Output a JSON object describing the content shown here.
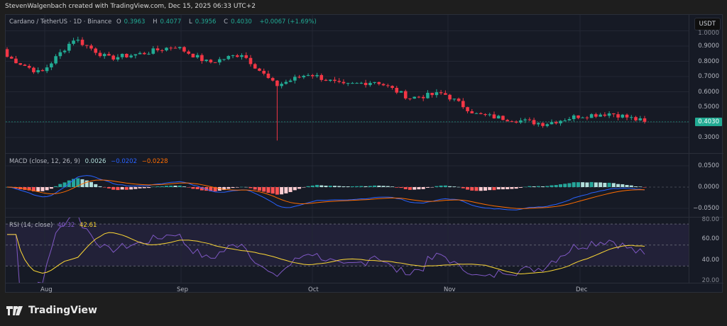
{
  "credit": "StevenWalgenbach created with TradingView.com, Dec 15, 2025 06:33 UTC+2",
  "symbol": {
    "title": "Cardano / TetherUS · 1D · Binance",
    "open_label": "O",
    "open": "0.3963",
    "high_label": "H",
    "high": "0.4077",
    "low_label": "L",
    "low": "0.3956",
    "close_label": "C",
    "close": "0.4030",
    "change": "+0.0067 (+1.69%)"
  },
  "currency_button": "USDT",
  "last_price_tag": "0.4030",
  "macd_legend": {
    "title": "MACD (close, 12, 26, 9)",
    "histogram": "0.0026",
    "macd": "−0.0202",
    "signal": "−0.0228"
  },
  "rsi_legend": {
    "title": "RSI (14, close)",
    "rsi": "40.32",
    "ma": "42.61"
  },
  "brand": "TradingView",
  "colors": {
    "up": "#22ab94",
    "down": "#f23645",
    "macd": "#2962ff",
    "signal": "#ff6d00",
    "rsi": "#7e57c2",
    "rsi_ma": "#fdd835",
    "background": "#161a25"
  },
  "chart_data": [
    {
      "type": "candlestick",
      "title": "Cardano / TetherUS · 1D · Binance",
      "ylabel": "USDT",
      "x_ticks": [
        "Aug",
        "Sep",
        "Oct",
        "Nov",
        "Dec"
      ],
      "y_ticks": [
        "1.0000",
        "0.9000",
        "0.8000",
        "0.7000",
        "0.6000",
        "0.5000",
        "0.4000",
        "0.3000"
      ],
      "ylim": [
        0.26,
        1.02
      ],
      "last_price": 0.403,
      "approx_close_path": [
        {
          "date": "Jul 23",
          "close": 0.83
        },
        {
          "date": "Aug 2",
          "close": 0.72
        },
        {
          "date": "Aug 14",
          "close": 0.95
        },
        {
          "date": "Aug 25",
          "close": 0.82
        },
        {
          "date": "Sep 10",
          "close": 0.85
        },
        {
          "date": "Sep 18",
          "close": 0.9
        },
        {
          "date": "Sep 25",
          "close": 0.79
        },
        {
          "date": "Oct 2",
          "close": 0.85
        },
        {
          "date": "Oct 10",
          "close": 0.64,
          "low": 0.28
        },
        {
          "date": "Oct 12",
          "close": 0.72
        },
        {
          "date": "Oct 20",
          "close": 0.64
        },
        {
          "date": "Oct 28",
          "close": 0.67
        },
        {
          "date": "Nov 3",
          "close": 0.56
        },
        {
          "date": "Nov 10",
          "close": 0.59
        },
        {
          "date": "Nov 20",
          "close": 0.45
        },
        {
          "date": "Nov 25",
          "close": 0.42
        },
        {
          "date": "Dec 1",
          "close": 0.39
        },
        {
          "date": "Dec 3",
          "close": 0.44
        },
        {
          "date": "Dec 9",
          "close": 0.46
        },
        {
          "date": "Dec 15",
          "close": 0.403
        }
      ]
    },
    {
      "type": "line+bar",
      "title": "MACD (close, 12, 26, 9)",
      "y_ticks": [
        "0.0500",
        "0.0000",
        "−0.0500"
      ],
      "series": [
        {
          "name": "MACD",
          "last": -0.0202
        },
        {
          "name": "Signal",
          "last": -0.0228
        },
        {
          "name": "Histogram",
          "last": 0.0026
        }
      ]
    },
    {
      "type": "line",
      "title": "RSI (14, close)",
      "y_ticks": [
        "80.00",
        "60.00",
        "40.00",
        "20.00"
      ],
      "bands": [
        70,
        50,
        30
      ],
      "series": [
        {
          "name": "RSI",
          "last": 40.32
        },
        {
          "name": "RSI-based MA",
          "last": 42.61
        }
      ]
    }
  ]
}
